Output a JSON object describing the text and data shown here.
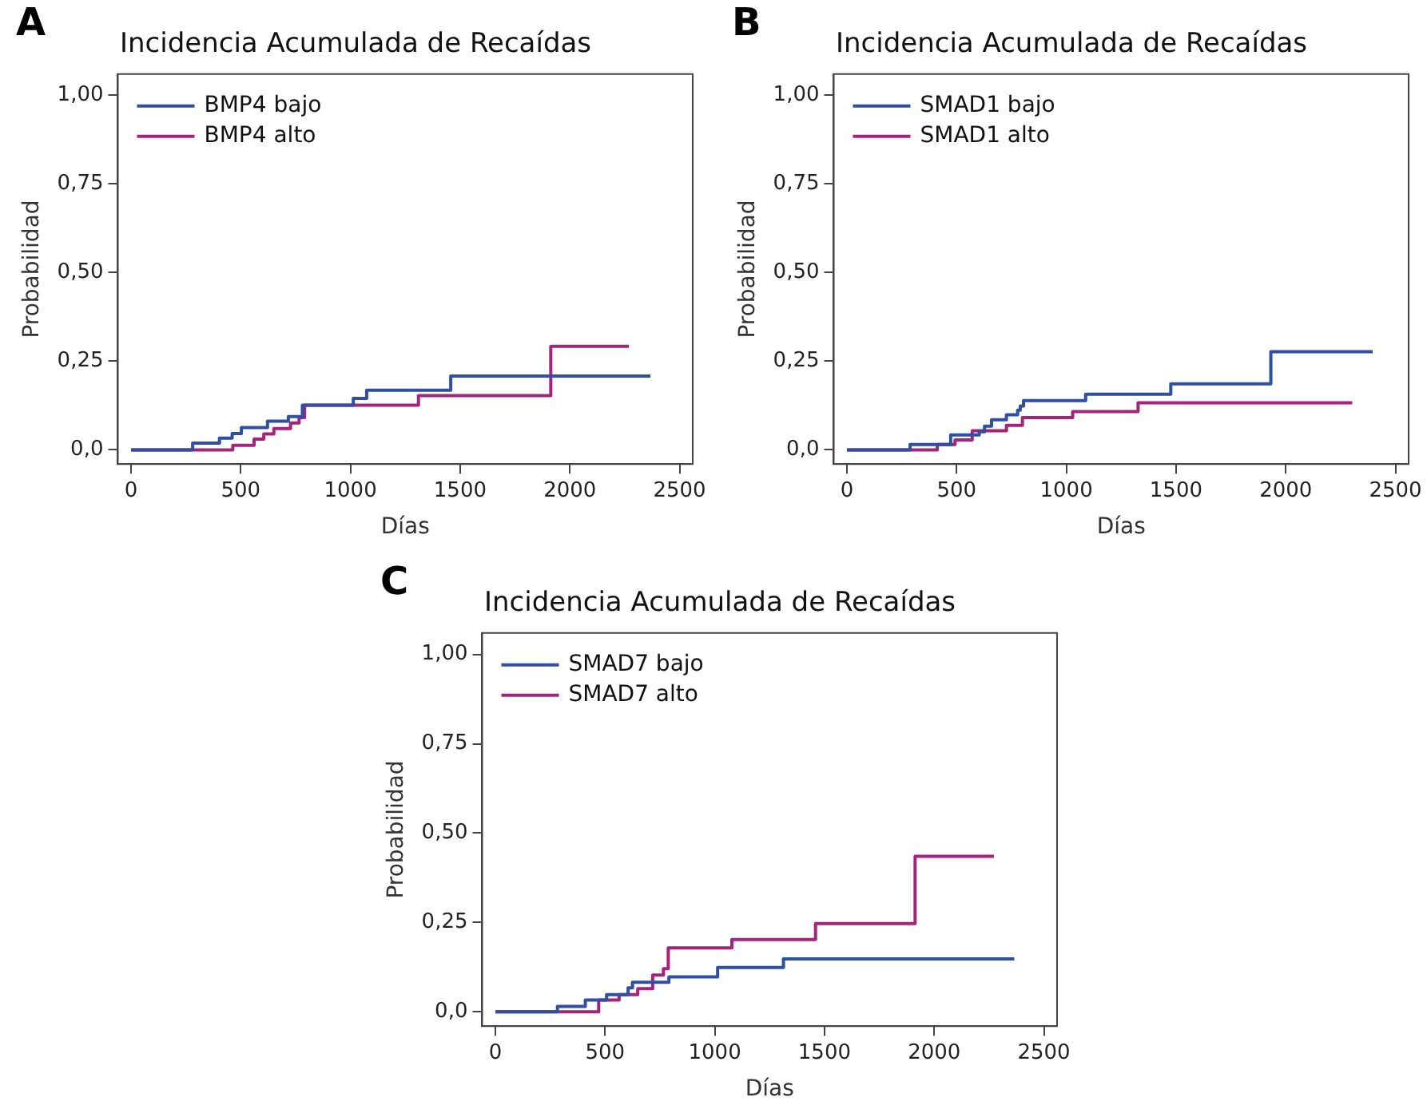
{
  "chart_data": [
    {
      "type": "step",
      "title": "Incidencia Acumulada de Recaídas",
      "xlabel": "Días",
      "ylabel": "Probabilidad",
      "annotations": [
        "A"
      ],
      "xlim": [
        -60,
        2560
      ],
      "xticks": [
        0,
        500,
        1000,
        1500,
        2000,
        2500
      ],
      "ylim": [
        -0.04,
        1.06
      ],
      "yticks": [
        {
          "value": 0,
          "label": "0,0"
        },
        {
          "value": 0.25,
          "label": "0,25"
        },
        {
          "value": 0.5,
          "label": "0,50"
        },
        {
          "value": 0.75,
          "label": "0,75"
        },
        {
          "value": 1,
          "label": "1,00"
        }
      ],
      "grid": false,
      "legend": "top left",
      "marker": "none",
      "line_style": "solid",
      "series": [
        {
          "name": "BMP4 bajo",
          "color": "#2e4fa3",
          "x": [
            0,
            281,
            403,
            461,
            503,
            622,
            717,
            781,
            1013,
            1074,
            1457,
            2367
          ],
          "values": [
            0,
            0.019,
            0.033,
            0.046,
            0.063,
            0.081,
            0.094,
            0.126,
            0.145,
            0.168,
            0.208,
            0.208
          ]
        },
        {
          "name": "BMP4 alto",
          "color": "#a3237f",
          "x": [
            0,
            464,
            561,
            605,
            651,
            727,
            766,
            791,
            1310,
            1913,
            2269
          ],
          "values": [
            0,
            0.013,
            0.03,
            0.045,
            0.06,
            0.076,
            0.091,
            0.126,
            0.153,
            0.292,
            0.292
          ]
        }
      ]
    },
    {
      "type": "step",
      "title": "Incidencia Acumulada de Recaídas",
      "xlabel": "Días",
      "ylabel": "Probabilidad",
      "annotations": [
        "B"
      ],
      "xlim": [
        -60,
        2560
      ],
      "xticks": [
        0,
        500,
        1000,
        1500,
        2000,
        2500
      ],
      "ylim": [
        -0.04,
        1.06
      ],
      "yticks": [
        {
          "value": 0,
          "label": "0,0"
        },
        {
          "value": 0.25,
          "label": "0,25"
        },
        {
          "value": 0.5,
          "label": "0,50"
        },
        {
          "value": 0.75,
          "label": "0,75"
        },
        {
          "value": 1,
          "label": "1,00"
        }
      ],
      "grid": false,
      "legend": "top left",
      "marker": "none",
      "line_style": "solid",
      "series": [
        {
          "name": "SMAD1 bajo",
          "color": "#2e4fa3",
          "x": [
            0,
            288,
            473,
            603,
            627,
            659,
            727,
            778,
            790,
            805,
            1088,
            1476,
            1932,
            2396
          ],
          "values": [
            0,
            0.015,
            0.042,
            0.051,
            0.067,
            0.085,
            0.099,
            0.112,
            0.124,
            0.139,
            0.157,
            0.186,
            0.277,
            0.277
          ]
        },
        {
          "name": "SMAD1 alto",
          "color": "#a3237f",
          "x": [
            0,
            412,
            493,
            571,
            727,
            800,
            1029,
            1327,
            2303
          ],
          "values": [
            0,
            0.015,
            0.028,
            0.054,
            0.069,
            0.091,
            0.108,
            0.133,
            0.133
          ]
        }
      ]
    },
    {
      "type": "step",
      "title": "Incidencia Acumulada de Recaídas",
      "xlabel": "Días",
      "ylabel": "Probabilidad",
      "annotations": [
        "C"
      ],
      "xlim": [
        -60,
        2560
      ],
      "xticks": [
        0,
        500,
        1000,
        1500,
        2000,
        2500
      ],
      "ylim": [
        -0.04,
        1.06
      ],
      "yticks": [
        {
          "value": 0,
          "label": "0,0"
        },
        {
          "value": 0.25,
          "label": "0,25"
        },
        {
          "value": 0.5,
          "label": "0,50"
        },
        {
          "value": 0.75,
          "label": "0,75"
        },
        {
          "value": 1,
          "label": "1,00"
        }
      ],
      "grid": false,
      "legend": "top left",
      "marker": "none",
      "line_style": "solid",
      "series": [
        {
          "name": "SMAD7 bajo",
          "color": "#2e4fa3",
          "x": [
            0,
            283,
            410,
            507,
            605,
            625,
            791,
            1013,
            1313,
            2365
          ],
          "values": [
            0,
            0.015,
            0.033,
            0.048,
            0.067,
            0.083,
            0.098,
            0.124,
            0.148,
            0.148
          ]
        },
        {
          "name": "SMAD7 alto",
          "color": "#a3237f",
          "x": [
            0,
            471,
            564,
            649,
            717,
            766,
            788,
            1078,
            1459,
            1913,
            2272
          ],
          "values": [
            0,
            0.033,
            0.048,
            0.065,
            0.103,
            0.121,
            0.179,
            0.202,
            0.247,
            0.435,
            0.435
          ]
        }
      ]
    }
  ]
}
